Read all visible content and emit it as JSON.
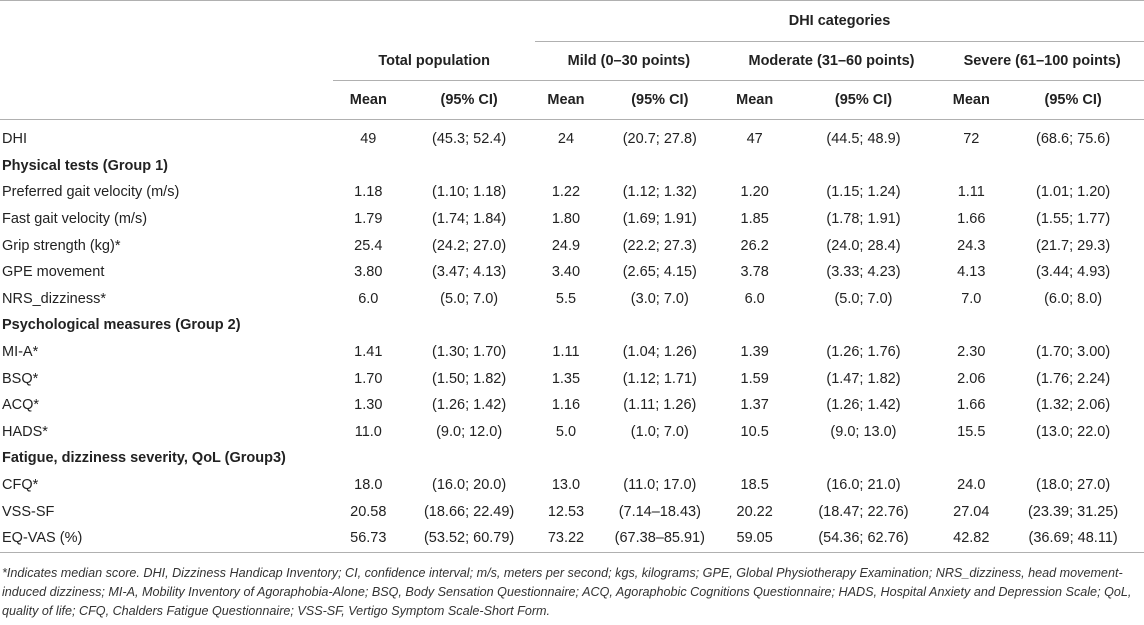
{
  "header": {
    "group_title": "DHI categories",
    "columns": [
      "Total population",
      "Mild (0–30 points)",
      "Moderate (31–60 points)",
      "Severe (61–100 points)"
    ],
    "mean_label": "Mean",
    "ci_label": "(95% CI)"
  },
  "rows": [
    {
      "type": "data",
      "label": "DHI",
      "values": [
        "49",
        "(45.3; 52.4)",
        "24",
        "(20.7; 27.8)",
        "47",
        "(44.5; 48.9)",
        "72",
        "(68.6; 75.6)"
      ]
    },
    {
      "type": "section",
      "label": "Physical tests (Group 1)"
    },
    {
      "type": "data",
      "label": "Preferred gait velocity (m/s)",
      "values": [
        "1.18",
        "(1.10; 1.18)",
        "1.22",
        "(1.12; 1.32)",
        "1.20",
        "(1.15; 1.24)",
        "1.11",
        "(1.01; 1.20)"
      ]
    },
    {
      "type": "data",
      "label": "Fast gait velocity (m/s)",
      "values": [
        "1.79",
        "(1.74; 1.84)",
        "1.80",
        "(1.69; 1.91)",
        "1.85",
        "(1.78; 1.91)",
        "1.66",
        "(1.55; 1.77)"
      ]
    },
    {
      "type": "data",
      "label": "Grip strength (kg)*",
      "values": [
        "25.4",
        "(24.2; 27.0)",
        "24.9",
        "(22.2; 27.3)",
        "26.2",
        "(24.0; 28.4)",
        "24.3",
        "(21.7; 29.3)"
      ]
    },
    {
      "type": "data",
      "label": "GPE movement",
      "values": [
        "3.80",
        "(3.47; 4.13)",
        "3.40",
        "(2.65; 4.15)",
        "3.78",
        "(3.33; 4.23)",
        "4.13",
        "(3.44; 4.93)"
      ]
    },
    {
      "type": "data",
      "label": "NRS_dizziness*",
      "values": [
        "6.0",
        "(5.0; 7.0)",
        "5.5",
        "(3.0; 7.0)",
        "6.0",
        "(5.0; 7.0)",
        "7.0",
        "(6.0; 8.0)"
      ]
    },
    {
      "type": "section",
      "label": "Psychological measures (Group 2)"
    },
    {
      "type": "data",
      "label": "MI-A*",
      "values": [
        "1.41",
        "(1.30; 1.70)",
        "1.11",
        "(1.04; 1.26)",
        "1.39",
        "(1.26; 1.76)",
        "2.30",
        "(1.70; 3.00)"
      ]
    },
    {
      "type": "data",
      "label": "BSQ*",
      "values": [
        "1.70",
        "(1.50; 1.82)",
        "1.35",
        "(1.12; 1.71)",
        "1.59",
        "(1.47; 1.82)",
        "2.06",
        "(1.76; 2.24)"
      ]
    },
    {
      "type": "data",
      "label": "ACQ*",
      "values": [
        "1.30",
        "(1.26; 1.42)",
        "1.16",
        "(1.11; 1.26)",
        "1.37",
        "(1.26; 1.42)",
        "1.66",
        "(1.32; 2.06)"
      ]
    },
    {
      "type": "data",
      "label": "HADS*",
      "values": [
        "11.0",
        "(9.0; 12.0)",
        "5.0",
        "(1.0; 7.0)",
        "10.5",
        "(9.0; 13.0)",
        "15.5",
        "(13.0; 22.0)"
      ]
    },
    {
      "type": "section",
      "label": "Fatigue, dizziness severity, QoL (Group3)"
    },
    {
      "type": "data",
      "label": "CFQ*",
      "values": [
        "18.0",
        "(16.0; 20.0)",
        "13.0",
        "(11.0; 17.0)",
        "18.5",
        "(16.0; 21.0)",
        "24.0",
        "(18.0; 27.0)"
      ]
    },
    {
      "type": "data",
      "label": "VSS-SF",
      "values": [
        "20.58",
        "(18.66; 22.49)",
        "12.53",
        "(7.14–18.43)",
        "20.22",
        "(18.47; 22.76)",
        "27.04",
        "(23.39; 31.25)"
      ]
    },
    {
      "type": "data",
      "label": "EQ-VAS (%)",
      "values": [
        "56.73",
        "(53.52; 60.79)",
        "73.22",
        "(67.38–85.91)",
        "59.05",
        "(54.36; 62.76)",
        "42.82",
        "(36.69; 48.11)"
      ]
    }
  ],
  "footnote": "*Indicates median score. DHI, Dizziness Handicap Inventory; CI, confidence interval; m/s, meters per second; kgs, kilograms; GPE, Global Physiotherapy Examination; NRS_dizziness, head movement-induced dizziness; MI-A, Mobility Inventory of Agoraphobia-Alone; BSQ, Body Sensation Questionnaire; ACQ, Agoraphobic Cognitions Questionnaire; HADS, Hospital Anxiety and Depression Scale; QoL, quality of life; CFQ, Chalders Fatigue Questionnaire; VSS-SF, Vertigo Symptom Scale-Short Form."
}
